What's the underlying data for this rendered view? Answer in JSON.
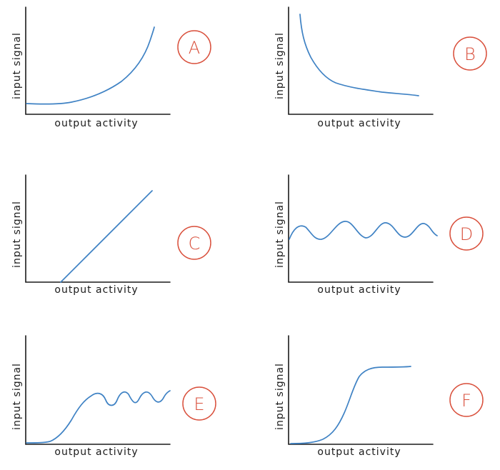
{
  "panels": [
    {
      "id": "A",
      "badge": "A",
      "xlabel": "output activity",
      "ylabel": "input signal",
      "shape": "exponential-rise"
    },
    {
      "id": "B",
      "badge": "B",
      "xlabel": "output activity",
      "ylabel": "input signal",
      "shape": "exponential-decay"
    },
    {
      "id": "C",
      "badge": "C",
      "xlabel": "output activity",
      "ylabel": "input signal",
      "shape": "linear"
    },
    {
      "id": "D",
      "badge": "D",
      "xlabel": "output activity",
      "ylabel": "input signal",
      "shape": "oscillation"
    },
    {
      "id": "E",
      "badge": "E",
      "xlabel": "output activity",
      "ylabel": "input signal",
      "shape": "sigmoid-with-oscillation"
    },
    {
      "id": "F",
      "badge": "F",
      "xlabel": "output activity",
      "ylabel": "input signal",
      "shape": "sigmoid"
    }
  ],
  "colors": {
    "curve": "#3f82c4",
    "badge": "#d9503c",
    "axis": "#1a1a1a"
  }
}
